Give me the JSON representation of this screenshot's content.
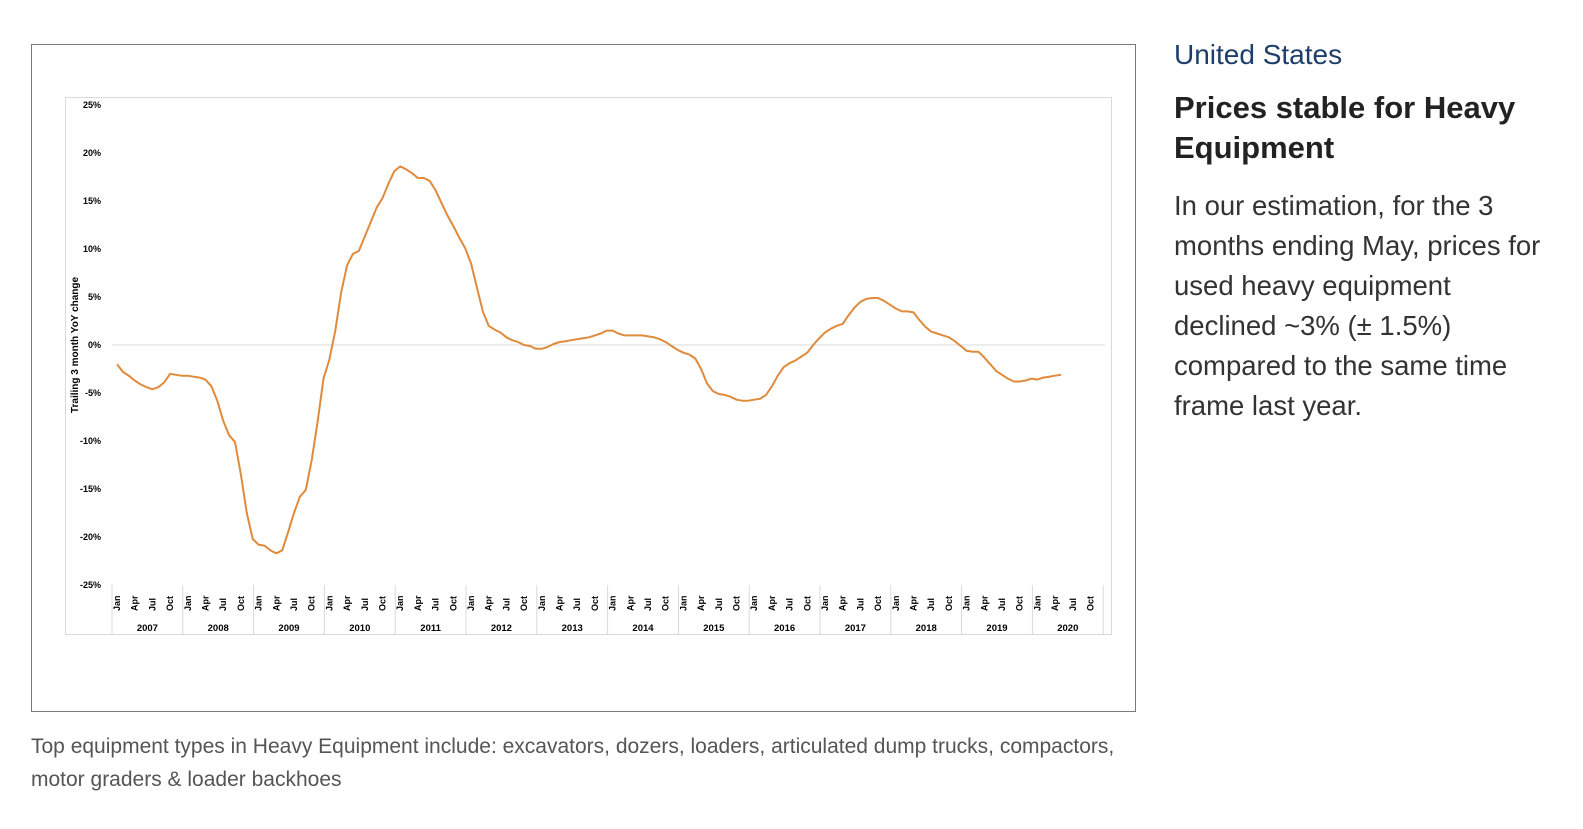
{
  "sidebar": {
    "region": "United States",
    "headline": "Prices stable for Heavy Equipment",
    "body": "In our estimation, for the 3 months ending May, prices for used heavy equipment declined ~3% (± 1.5%) compared to the same time frame last year."
  },
  "caption": "Top equipment types in Heavy Equipment include: excavators, dozers, loaders, articulated dump trucks, compactors, motor graders & loader backhoes",
  "chart_data": {
    "type": "line",
    "title": "",
    "xlabel": "",
    "ylabel": "Trailing 3 month YoY change",
    "ylim": [
      -25,
      25
    ],
    "y_ticks": [
      "25%",
      "20%",
      "15%",
      "10%",
      "5%",
      "0%",
      "-5%",
      "-10%",
      "-15%",
      "-20%",
      "-25%"
    ],
    "y_tick_values": [
      25,
      20,
      15,
      10,
      5,
      0,
      -5,
      -10,
      -15,
      -20,
      -25
    ],
    "month_ticks": [
      "Jan",
      "Apr",
      "Jul",
      "Oct"
    ],
    "years": [
      "2007",
      "2008",
      "2009",
      "2010",
      "2011",
      "2012",
      "2013",
      "2014",
      "2015",
      "2016",
      "2017",
      "2018",
      "2019",
      "2020"
    ],
    "grid": false,
    "legend": "none",
    "line_color": "#e08a3c",
    "monthly_values_by_year": {
      "2007": [
        -2.0,
        -2.8,
        -3.2,
        -3.7,
        -4.1,
        -4.4,
        -4.6,
        -4.4,
        -3.9,
        -3.0,
        -3.1,
        -3.2
      ],
      "2008": [
        -3.2,
        -3.3,
        -3.4,
        -3.6,
        -4.3,
        -5.8,
        -7.9,
        -9.4,
        -10.1,
        -13.5,
        -17.5,
        -20.2
      ],
      "2009": [
        -20.8,
        -20.9,
        -21.4,
        -21.7,
        -21.4,
        -19.5,
        -17.5,
        -15.8,
        -15.1,
        -12.0,
        -8.0,
        -3.5
      ],
      "2010": [
        -1.5,
        1.5,
        5.5,
        8.3,
        9.5,
        9.8,
        11.3,
        12.8,
        14.3,
        15.3,
        16.8,
        18.1
      ],
      "2011": [
        18.6,
        18.3,
        17.9,
        17.4,
        17.4,
        17.1,
        16.1,
        14.8,
        13.5,
        12.4,
        11.2,
        10.1
      ],
      "2012": [
        8.5,
        6.0,
        3.5,
        2.0,
        1.6,
        1.3,
        0.8,
        0.5,
        0.3,
        0.0,
        -0.1,
        -0.4
      ],
      "2013": [
        -0.4,
        -0.2,
        0.1,
        0.3,
        0.4,
        0.5,
        0.6,
        0.7,
        0.8,
        1.0,
        1.2,
        1.5
      ],
      "2014": [
        1.5,
        1.2,
        1.0,
        1.0,
        1.0,
        1.0,
        0.9,
        0.8,
        0.6,
        0.3,
        -0.1,
        -0.5
      ],
      "2015": [
        -0.8,
        -1.0,
        -1.4,
        -2.5,
        -4.0,
        -4.8,
        -5.1,
        -5.2,
        -5.4,
        -5.7,
        -5.8,
        -5.8
      ],
      "2016": [
        -5.7,
        -5.6,
        -5.2,
        -4.3,
        -3.2,
        -2.3,
        -1.9,
        -1.6,
        -1.2,
        -0.8,
        0.0,
        0.7
      ],
      "2017": [
        1.3,
        1.7,
        2.0,
        2.2,
        3.1,
        3.9,
        4.5,
        4.8,
        4.9,
        4.9,
        4.6,
        4.2
      ],
      "2018": [
        3.8,
        3.5,
        3.5,
        3.4,
        2.6,
        1.9,
        1.4,
        1.2,
        1.0,
        0.8,
        0.4,
        -0.1
      ],
      "2019": [
        -0.6,
        -0.7,
        -0.7,
        -1.3,
        -2.0,
        -2.7,
        -3.1,
        -3.5,
        -3.8,
        -3.8,
        -3.7,
        -3.5
      ],
      "2020": [
        -3.6,
        -3.4,
        -3.3,
        -3.2,
        -3.1
      ]
    }
  }
}
